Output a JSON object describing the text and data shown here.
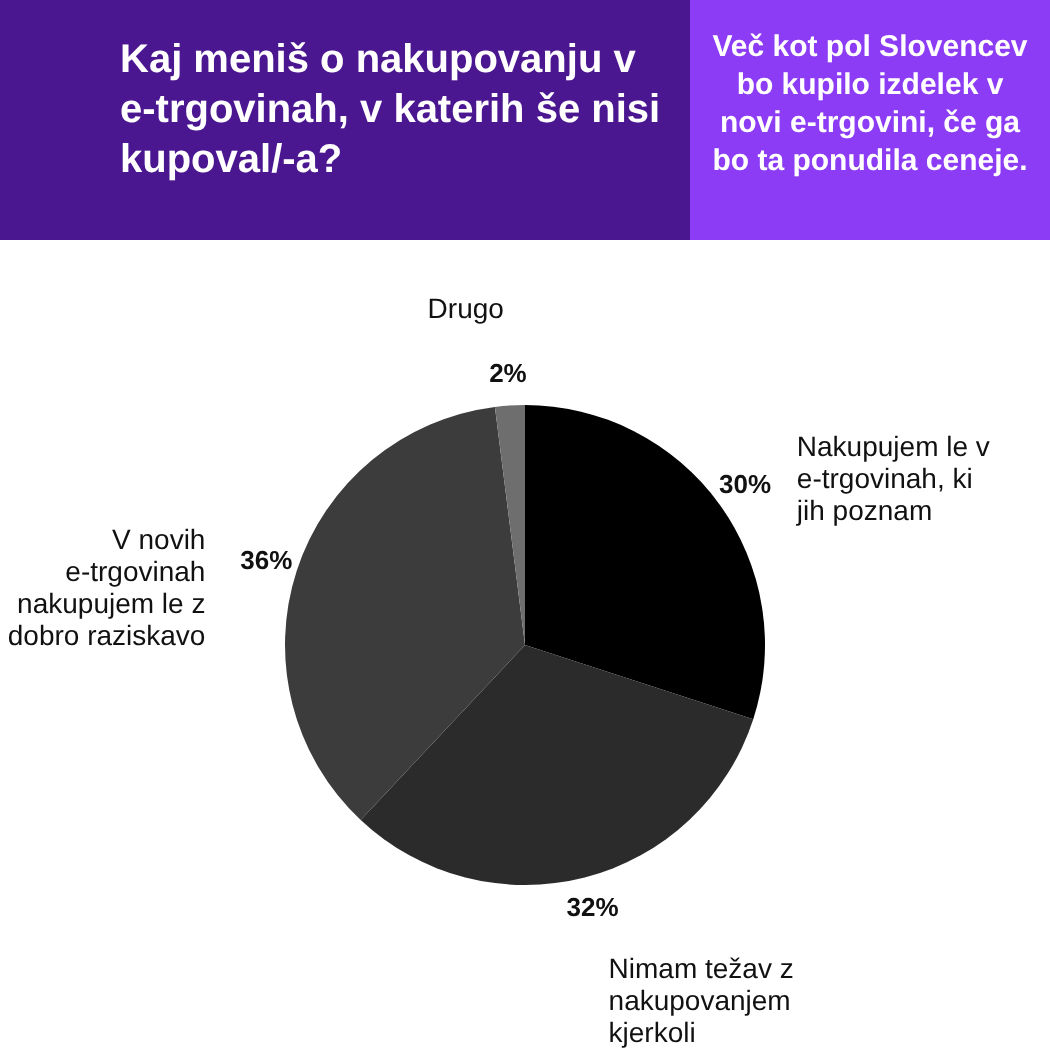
{
  "chart_data": {
    "type": "pie",
    "title": "Kaj meniš o nakupovanju v e-trgovinah, v katerih še nisi kupoval/-a?",
    "subtitle": "Več kot pol Slovencev bo kupilo izdelek v novi e-trgovini, če ga bo ta ponudila ceneje.",
    "categories": [
      "Nakupujem le v e-trgovinah, ki jih poznam",
      "Nimam težav z nakupovanjem kjerkoli",
      "V novih e-trgovinah nakupujem le z dobro raziskavo",
      "Drugo"
    ],
    "values": [
      30,
      32,
      36,
      2
    ],
    "colors": [
      "#000000",
      "#2b2b2b",
      "#3c3c3c",
      "#6e6e6e"
    ],
    "value_labels": [
      "30%",
      "32%",
      "36%",
      "2%"
    ]
  }
}
